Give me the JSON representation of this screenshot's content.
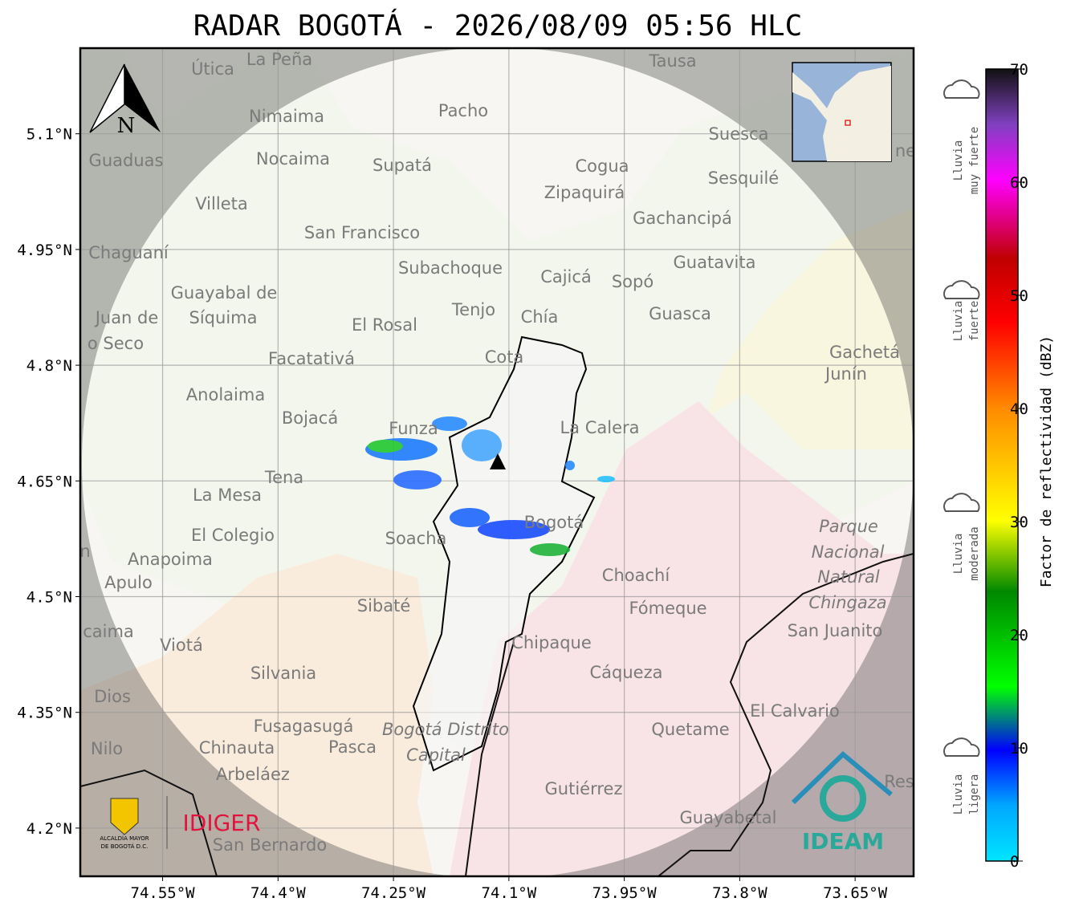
{
  "title": "RADAR BOGOTÁ - 2026/08/09 05:56 HLC",
  "map": {
    "xlim": [
      -74.657,
      -73.574
    ],
    "ylim": [
      4.1375,
      5.211
    ],
    "xticks": [
      {
        "value": -74.55,
        "label": "74.55°W"
      },
      {
        "value": -74.4,
        "label": "74.4°W"
      },
      {
        "value": -74.25,
        "label": "74.25°W"
      },
      {
        "value": -74.1,
        "label": "74.1°W"
      },
      {
        "value": -73.95,
        "label": "73.95°W"
      },
      {
        "value": -73.8,
        "label": "73.8°W"
      },
      {
        "value": -73.65,
        "label": "73.65°W"
      }
    ],
    "yticks": [
      {
        "value": 5.1,
        "label": "5.1°N"
      },
      {
        "value": 4.95,
        "label": "4.95°N"
      },
      {
        "value": 4.8,
        "label": "4.8°N"
      },
      {
        "value": 4.65,
        "label": "4.65°N"
      },
      {
        "value": 4.5,
        "label": "4.5°N"
      },
      {
        "value": 4.35,
        "label": "4.35°N"
      },
      {
        "value": 4.2,
        "label": "4.2°N"
      }
    ],
    "grid": true,
    "north": "N",
    "places": [
      "La Peña",
      "Útica",
      "Tausa",
      "Pacho",
      "Nimaima",
      "Suesca",
      "Guaduas",
      "Nocaima",
      "Supatá",
      "Cogua",
      "Sesquilé",
      "Zipaquirá",
      "Villeta",
      "Gachancipá",
      "San Francisco",
      "Chaguaní",
      "Guatavita",
      "Subachoque",
      "Cajicá",
      "Sopó",
      "Guayabal de",
      "Síquima",
      "Juan de",
      "o Seco",
      "Tenjo",
      "Chía",
      "El Rosal",
      "Guasca",
      "Facatativá",
      "Gachetá",
      "Junín",
      "Cota",
      "Anolaima",
      "Bojacá",
      "Funza",
      "La Calera",
      "Tena",
      "La Mesa",
      "El Colegio",
      "Soacha",
      "Bogotá",
      "Parque",
      "Nacional",
      "Natural",
      "Chingaza",
      "Anapoima",
      "Apulo",
      "Choachí",
      "Sibaté",
      "Fómeque",
      "San Juanito",
      "caima",
      "Viotá",
      "Chipaque",
      "Silvania",
      "Cáqueza",
      "Dios",
      "El Calvario",
      "Fusagasugá",
      "Bogotá Distrito",
      "Quetame",
      "Nilo",
      "Chinauta",
      "Pasca",
      "Capital",
      "Arbeláez",
      "Gutiérrez",
      "Guayabetal",
      "San Bernardo",
      "Res",
      "ne",
      "n"
    ]
  },
  "colorbar": {
    "label": "Factor de reflectividad (dBZ)",
    "lim": [
      0,
      70
    ],
    "ticks": [
      0,
      10,
      20,
      30,
      40,
      50,
      60,
      70
    ],
    "categories": [
      [
        "Lluvia",
        "muy fuerte"
      ],
      [
        "Lluvia",
        "fuerte"
      ],
      [
        "Lluvia",
        "moderada"
      ],
      [
        "Lluvia",
        "ligera"
      ]
    ]
  },
  "logos": {
    "city": [
      "ALCALDÍA MAYOR",
      "DE BOGOTÁ D.C."
    ],
    "idiger": "IDIGER",
    "ideam": "IDEAM"
  }
}
